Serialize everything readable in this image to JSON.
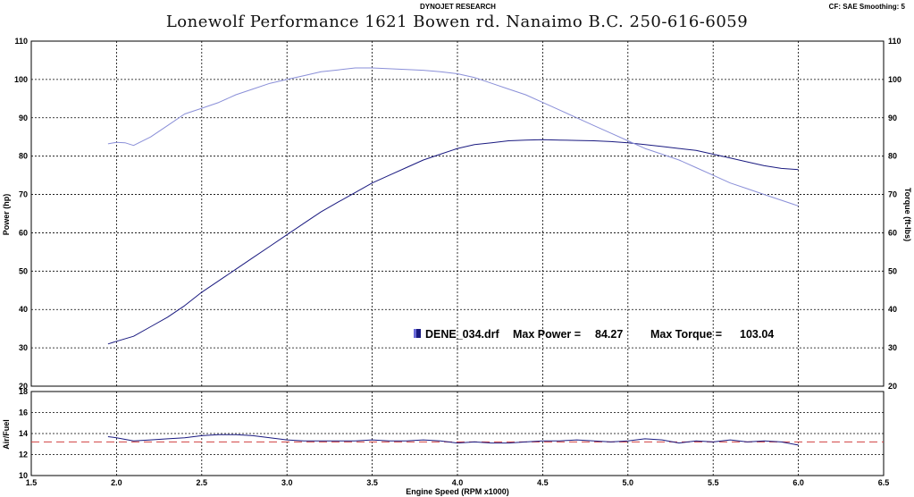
{
  "header": {
    "top_center": "DYNOJET RESEARCH",
    "top_right": "CF: SAE  Smoothing: 5",
    "title": "Lonewolf Performance 1621 Bowen rd. Nanaimo B.C. 250-616-6059"
  },
  "colors": {
    "power": "#1a1a80",
    "torque": "#8a8fd8",
    "afr": "#1a1a80",
    "afr_target": "#d04040",
    "grid": "#000000"
  },
  "chart_data": [
    {
      "type": "line",
      "xlabel": "",
      "ylabel": "Power (hp)",
      "y2label": "Torque (ft-lbs)",
      "xlim": [
        1.5,
        6.5
      ],
      "ylim": [
        20,
        110
      ],
      "y2lim": [
        20,
        110
      ],
      "yticks": [
        "20",
        "30",
        "40",
        "50",
        "60",
        "70",
        "80",
        "90",
        "100",
        "110"
      ],
      "grid": true,
      "annotation": {
        "file": "DENE_034.drf",
        "max_power_label": "Max Power =",
        "max_power": "84.27",
        "max_torque_label": "Max Torque =",
        "max_torque": "103.04"
      },
      "series": [
        {
          "key": "power",
          "x": [
            1.95,
            2.0,
            2.1,
            2.2,
            2.3,
            2.4,
            2.5,
            2.6,
            2.7,
            2.8,
            2.9,
            3.0,
            3.1,
            3.2,
            3.3,
            3.4,
            3.5,
            3.6,
            3.7,
            3.8,
            3.9,
            4.0,
            4.1,
            4.2,
            4.3,
            4.4,
            4.5,
            4.6,
            4.7,
            4.8,
            4.9,
            5.0,
            5.1,
            5.2,
            5.3,
            5.4,
            5.5,
            5.6,
            5.7,
            5.8,
            5.9,
            6.0
          ],
          "values": [
            31,
            31.7,
            33,
            35.5,
            38,
            41,
            44.5,
            47.5,
            50.5,
            53.5,
            56.5,
            59.5,
            62.5,
            65.5,
            68,
            70.5,
            73,
            75,
            77,
            79,
            80.5,
            82,
            83,
            83.5,
            84,
            84.2,
            84.3,
            84.2,
            84.1,
            84.0,
            83.8,
            83.5,
            83.0,
            82.5,
            82.0,
            81.5,
            80.5,
            79.5,
            78.5,
            77.5,
            76.8,
            76.5
          ]
        },
        {
          "key": "torque",
          "x": [
            1.95,
            2.0,
            2.05,
            2.1,
            2.2,
            2.3,
            2.4,
            2.5,
            2.6,
            2.7,
            2.8,
            2.9,
            3.0,
            3.1,
            3.2,
            3.3,
            3.4,
            3.5,
            3.6,
            3.7,
            3.8,
            3.9,
            4.0,
            4.1,
            4.2,
            4.3,
            4.4,
            4.5,
            4.6,
            4.7,
            4.8,
            4.9,
            5.0,
            5.1,
            5.2,
            5.3,
            5.4,
            5.5,
            5.6,
            5.7,
            5.8,
            5.9,
            6.0
          ],
          "values": [
            83.2,
            83.6,
            83.5,
            82.8,
            85,
            88,
            91,
            92.5,
            94,
            96,
            97.5,
            99,
            100,
            101,
            102,
            102.5,
            103,
            103,
            102.8,
            102.6,
            102.4,
            102,
            101.5,
            100.5,
            99,
            97.5,
            96,
            94,
            92,
            90,
            88,
            86,
            84,
            82,
            80.5,
            79,
            77,
            75,
            73,
            71.5,
            70,
            68.5,
            67
          ]
        }
      ]
    },
    {
      "type": "line",
      "xlabel": "Engine Speed (RPM x1000)",
      "ylabel": "Air/Fuel",
      "xlim": [
        1.5,
        6.5
      ],
      "ylim": [
        10,
        18
      ],
      "xticks": [
        "1.5",
        "2.0",
        "2.5",
        "3.0",
        "3.5",
        "4.0",
        "4.5",
        "5.0",
        "5.5",
        "6.0",
        "6.5"
      ],
      "yticks": [
        "10",
        "12",
        "14",
        "16",
        "18"
      ],
      "grid": true,
      "series": [
        {
          "key": "afr",
          "x": [
            1.95,
            2.0,
            2.1,
            2.2,
            2.3,
            2.4,
            2.5,
            2.6,
            2.7,
            2.8,
            2.9,
            3.0,
            3.1,
            3.2,
            3.3,
            3.4,
            3.5,
            3.6,
            3.7,
            3.8,
            3.9,
            4.0,
            4.1,
            4.2,
            4.3,
            4.4,
            4.5,
            4.6,
            4.7,
            4.8,
            4.9,
            5.0,
            5.1,
            5.2,
            5.3,
            5.4,
            5.5,
            5.6,
            5.7,
            5.8,
            5.9,
            6.0
          ],
          "values": [
            13.7,
            13.6,
            13.3,
            13.4,
            13.5,
            13.6,
            13.8,
            13.9,
            13.9,
            13.8,
            13.6,
            13.4,
            13.3,
            13.3,
            13.3,
            13.3,
            13.4,
            13.3,
            13.3,
            13.4,
            13.3,
            13.1,
            13.2,
            13.1,
            13.1,
            13.2,
            13.3,
            13.3,
            13.4,
            13.3,
            13.2,
            13.3,
            13.5,
            13.4,
            13.1,
            13.3,
            13.2,
            13.4,
            13.2,
            13.3,
            13.2,
            12.9
          ]
        }
      ],
      "target_line": {
        "y": 13.2
      }
    }
  ]
}
